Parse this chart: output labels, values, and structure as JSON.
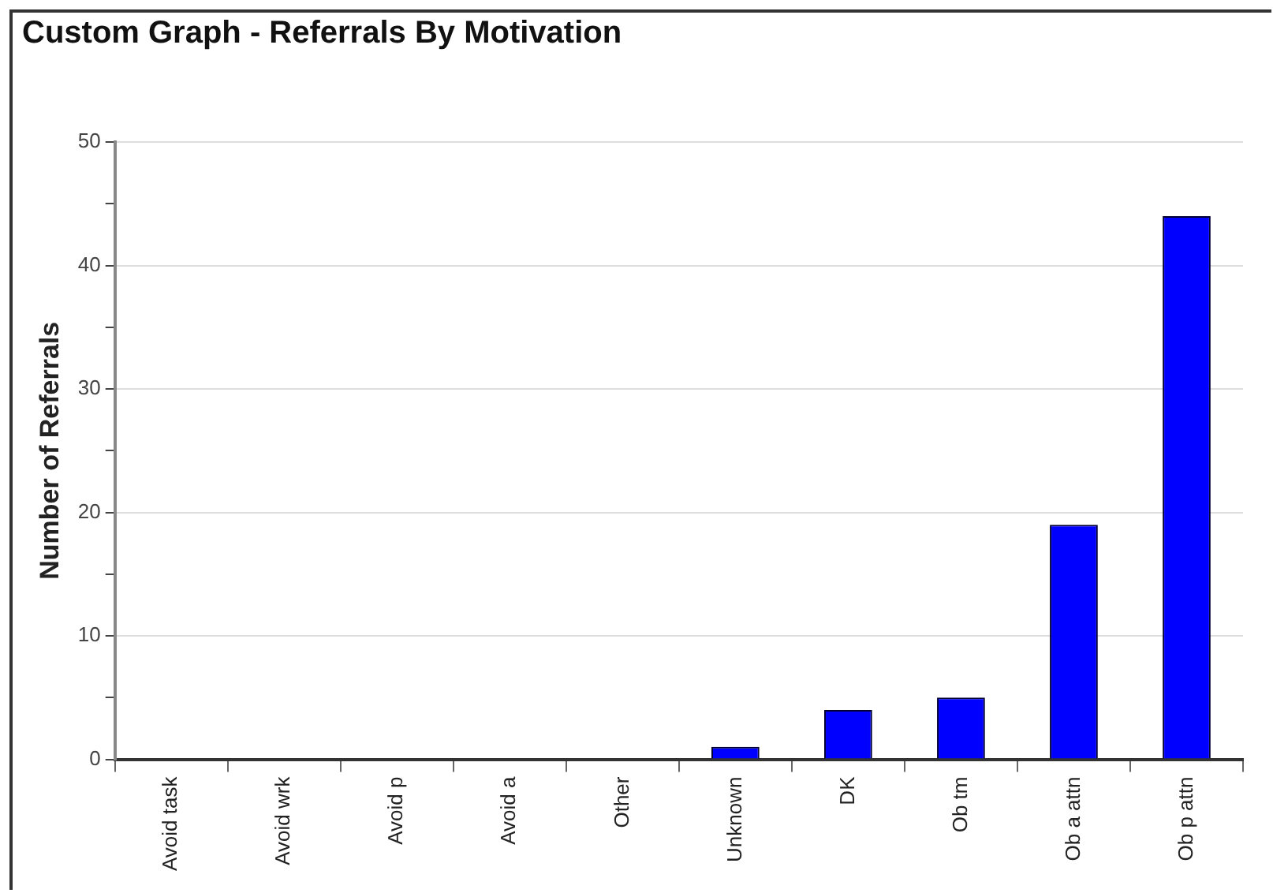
{
  "chart_data": {
    "type": "bar",
    "title": "Custom Graph - Referrals By Motivation",
    "ylabel": "Number of Referrals",
    "categories": [
      "Avoid task",
      "Avoid wrk",
      "Avoid p",
      "Avoid a",
      "Other",
      "Unknown",
      "DK",
      "Ob tm",
      "Ob a attn",
      "Ob p attn"
    ],
    "values": [
      0,
      0,
      0,
      0,
      0,
      1,
      4,
      5,
      19,
      44
    ],
    "color": "#0000ff",
    "ylim": [
      0,
      50
    ],
    "yticks": [
      0,
      {
        "value": 5,
        "label": null
      },
      10,
      {
        "value": 15,
        "label": null
      },
      20,
      {
        "value": 25,
        "label": null
      },
      30,
      {
        "value": 35,
        "label": null
      },
      40,
      {
        "value": 45,
        "label": null
      },
      50
    ],
    "grid": "y",
    "legend": false
  }
}
